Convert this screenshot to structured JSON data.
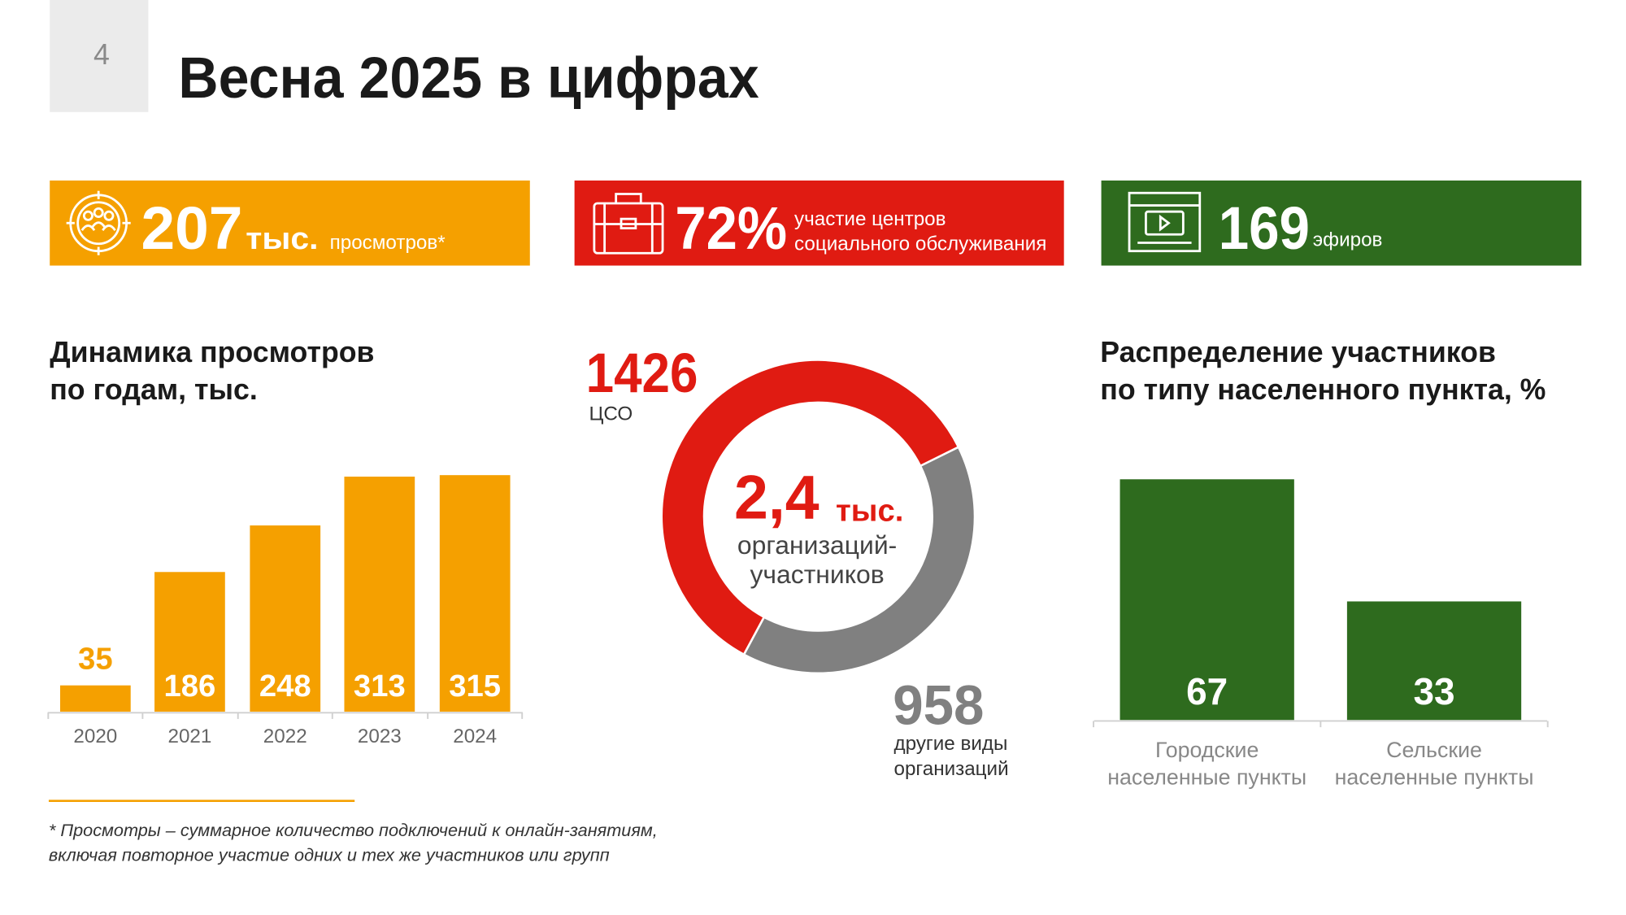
{
  "page_number": "4",
  "title": "Весна 2025 в цифрах",
  "stats": [
    {
      "number": "207",
      "unit": "тыс.",
      "lines": [
        "просмотров*"
      ],
      "color": "#f5a000"
    },
    {
      "number": "72%",
      "lines": [
        "участие центров",
        "социального обслуживания"
      ],
      "color": "#e01b12"
    },
    {
      "number": "169",
      "lines": [
        "эфиров"
      ],
      "color": "#2e6b1e"
    }
  ],
  "chart_data": [
    {
      "type": "bar",
      "title": [
        "Динамика просмотров",
        "по годам, тыс."
      ],
      "categories": [
        [
          "2020"
        ],
        [
          "2021"
        ],
        [
          "2022"
        ],
        [
          "2023"
        ],
        [
          "2024"
        ]
      ],
      "values": [
        35,
        186,
        248,
        313,
        315
      ],
      "color": "#f5a000"
    },
    {
      "type": "donut",
      "center_value": "2,4",
      "center_unit": "тыс.",
      "center_label": [
        "организаций-",
        "участников"
      ],
      "series": [
        {
          "name": [
            "ЦСО"
          ],
          "color": "#e01b12",
          "values": [
            1426
          ]
        },
        {
          "name": [
            "другие виды",
            "организаций"
          ],
          "color": "#808080",
          "values": [
            958
          ]
        }
      ]
    },
    {
      "type": "bar",
      "title": [
        "Распределение участников",
        "по типу населенного пункта, %"
      ],
      "categories": [
        [
          "Городские",
          "населенные пункты"
        ],
        [
          "Сельские",
          "населенные пункты"
        ]
      ],
      "values": [
        67,
        33
      ],
      "color": "#2e6b1e"
    }
  ],
  "footnote": [
    "* Просмотры – суммарное количество подключений к онлайн-занятиям,",
    "включая повторное участие одних и тех же участников или групп"
  ]
}
